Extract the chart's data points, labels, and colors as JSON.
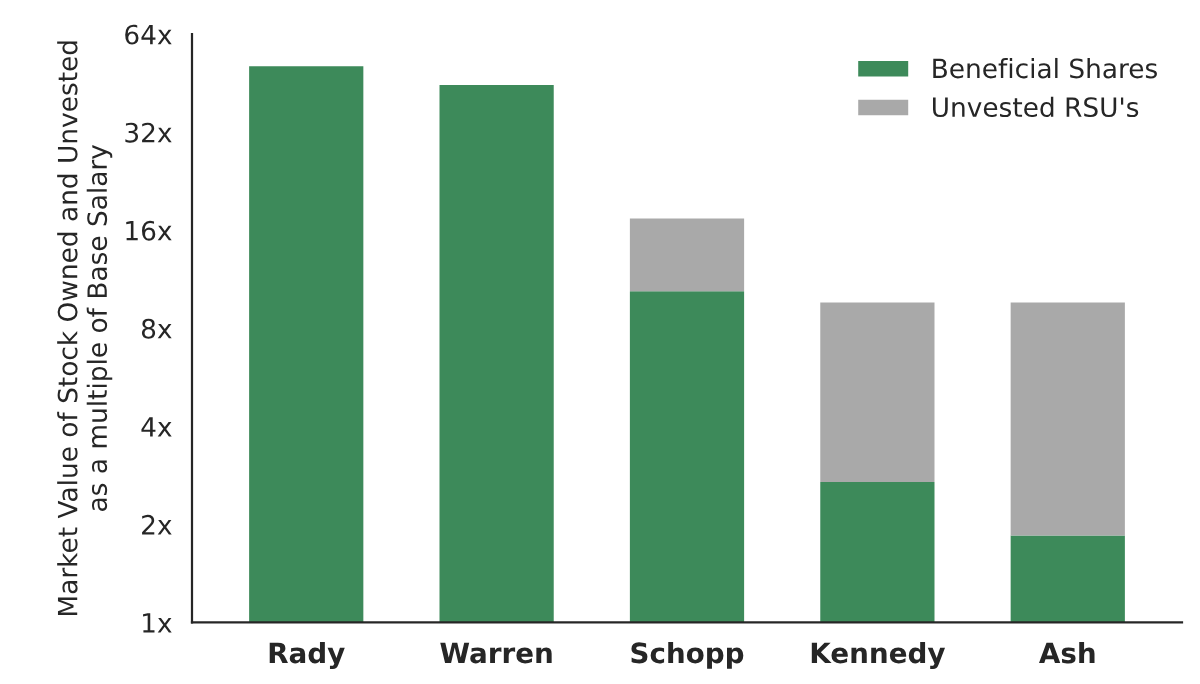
{
  "chart_data": {
    "type": "bar",
    "stacked": true,
    "log": true,
    "categories": [
      "Rady",
      "Warren",
      "Schopp",
      "Kennedy",
      "Ash"
    ],
    "ylabel": "Market Value of Stock Owned and Unvested\nas a multiple of Base Salary",
    "ylim": [
      1,
      64
    ],
    "yticks": [
      {
        "value": 1,
        "label": "1x"
      },
      {
        "value": 2,
        "label": "2x"
      },
      {
        "value": 4,
        "label": "4x"
      },
      {
        "value": 8,
        "label": "8x"
      },
      {
        "value": 16,
        "label": "16x"
      },
      {
        "value": 32,
        "label": "32x"
      },
      {
        "value": 64,
        "label": "64x"
      }
    ],
    "series": [
      {
        "name": "Beneficial Shares",
        "color": "#3d8a5a",
        "values": [
          51,
          44.7,
          10.4,
          2.7,
          1.85
        ]
      },
      {
        "name": "Unvested RSU's",
        "color": "#a9a9a9",
        "values": [
          null,
          null,
          7,
          6.9,
          7.75
        ]
      }
    ],
    "grid": false,
    "legend": "top right"
  }
}
